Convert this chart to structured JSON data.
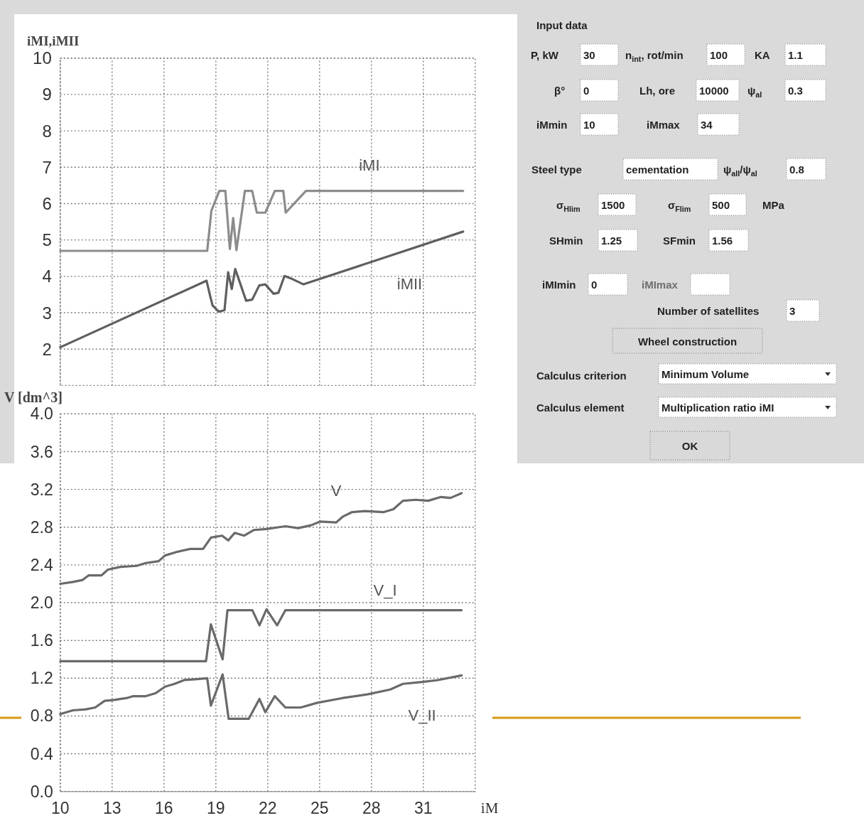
{
  "chart_data": [
    {
      "type": "line",
      "ylabel": "iMI,iMII",
      "xlim": [
        10,
        34
      ],
      "xticks": [
        10,
        13,
        16,
        19,
        22,
        25,
        28,
        31
      ],
      "ylim": [
        1,
        10
      ],
      "yticks": [
        2,
        3,
        4,
        5,
        6,
        7,
        8,
        9,
        10
      ],
      "tick_labels": "y",
      "grid": true,
      "series": [
        {
          "name": "iMI",
          "color": "#8c8c8c",
          "x": [
            10,
            18.5,
            18.74,
            19.2,
            19.55,
            19.81,
            20.0,
            20.19,
            20.68,
            21.1,
            21.37,
            21.86,
            22.41,
            22.9,
            23.04,
            24.21,
            33.3
          ],
          "values": [
            4.7,
            4.7,
            5.8,
            6.35,
            6.35,
            4.75,
            5.6,
            4.72,
            6.35,
            6.35,
            5.75,
            5.75,
            6.35,
            6.35,
            5.75,
            6.35,
            6.35
          ]
        },
        {
          "name": "iMII",
          "color": "#5f5f5f",
          "x": [
            10,
            18.46,
            18.67,
            18.81,
            19.16,
            19.5,
            19.71,
            19.92,
            20.12,
            20.75,
            21.1,
            21.51,
            21.86,
            22.34,
            22.62,
            22.97,
            23.31,
            24.07,
            33.3
          ],
          "values": [
            2.05,
            3.88,
            3.46,
            3.2,
            3.03,
            3.07,
            4.11,
            3.65,
            4.2,
            3.33,
            3.36,
            3.75,
            3.78,
            3.52,
            3.55,
            4.01,
            3.95,
            3.78,
            5.23
          ]
        }
      ]
    },
    {
      "type": "line",
      "ylabel": "V [dm^3]",
      "xlabel": "iM",
      "xlim": [
        10,
        34
      ],
      "xticks": [
        10,
        13,
        16,
        19,
        22,
        25,
        28,
        31
      ],
      "ylim": [
        0,
        4
      ],
      "yticks": [
        {
          "value": 0,
          "label": "0.0"
        },
        0.4,
        0.8,
        1.2,
        1.6,
        {
          "value": 2,
          "label": "2.0"
        },
        2.4,
        2.8,
        3.2,
        3.6,
        {
          "value": 4,
          "label": "4.0"
        }
      ],
      "grid": true,
      "series": [
        {
          "name": "V",
          "color": "#6a6a6a",
          "x": [
            10,
            10.73,
            11.28,
            11.65,
            12.39,
            12.75,
            13.49,
            14.4,
            14.95,
            15.69,
            16.06,
            16.79,
            17.52,
            18.26,
            18.72,
            19.36,
            19.72,
            20.09,
            20.64,
            21.19,
            21.93,
            22.66,
            23.03,
            23.76,
            24.5,
            25.05,
            25.96,
            26.33,
            26.88,
            27.61,
            28.72,
            29.27,
            29.82,
            30.55,
            31.28,
            32.02,
            32.57,
            33.21
          ],
          "values": [
            2.2,
            2.22,
            2.24,
            2.29,
            2.29,
            2.35,
            2.38,
            2.39,
            2.42,
            2.44,
            2.5,
            2.54,
            2.57,
            2.57,
            2.69,
            2.71,
            2.66,
            2.74,
            2.71,
            2.77,
            2.78,
            2.8,
            2.81,
            2.79,
            2.82,
            2.86,
            2.85,
            2.91,
            2.96,
            2.97,
            2.96,
            2.99,
            3.08,
            3.09,
            3.08,
            3.12,
            3.11,
            3.16
          ]
        },
        {
          "name": "V_I",
          "color": "#6a6a6a",
          "x": [
            10,
            18.43,
            18.71,
            19.39,
            19.67,
            21.11,
            21.52,
            21.93,
            22.54,
            23.02,
            33.21
          ],
          "values": [
            1.38,
            1.38,
            1.77,
            1.4,
            1.92,
            1.92,
            1.76,
            1.93,
            1.76,
            1.92,
            1.92
          ]
        },
        {
          "name": "V_II",
          "color": "#6a6a6a",
          "x": [
            10,
            10.73,
            11.47,
            12.02,
            12.57,
            13.12,
            13.85,
            14.22,
            14.95,
            15.5,
            16.06,
            16.61,
            17.16,
            17.89,
            18.5,
            18.71,
            19.39,
            19.74,
            20.9,
            21.52,
            21.86,
            22.41,
            23.02,
            23.91,
            24.87,
            26.33,
            27.8,
            29.08,
            29.82,
            30.92,
            31.83,
            33.21
          ],
          "values": [
            0.82,
            0.86,
            0.87,
            0.89,
            0.96,
            0.97,
            0.99,
            1.01,
            1.01,
            1.04,
            1.11,
            1.14,
            1.18,
            1.19,
            1.2,
            0.91,
            1.24,
            0.77,
            0.77,
            0.98,
            0.84,
            1.01,
            0.89,
            0.89,
            0.94,
            0.99,
            1.03,
            1.08,
            1.14,
            1.16,
            1.18,
            1.23
          ]
        }
      ]
    },
    {
      "type": "other",
      "title": "Input data",
      "annotations": [
        "P, kW",
        "30",
        "n$_{int}$, rot/min",
        "100",
        "KA",
        "1.1",
        "β°",
        "0",
        "Lh, ore",
        "10000",
        "ψ$_{aI}$",
        "0.3",
        "iMmin",
        "10",
        "iMmax",
        "34",
        "Steel type",
        "cementation",
        "ψ$_{aII}$/ψ$_{aI}$",
        "0.8",
        "σ$_{Hlim}$",
        "1500",
        "σ$_{Flim}$",
        "500",
        "MPa",
        "SHmin",
        "1.25",
        "SFmin",
        "1.56",
        "iMImin",
        "0",
        "iMImax",
        "Number of satellites",
        "3",
        "Wheel construction",
        "Calculus criterion",
        "Minimum Volume",
        "Calculus element",
        "Multiplication ratio iMI",
        "OK"
      ]
    }
  ]
}
